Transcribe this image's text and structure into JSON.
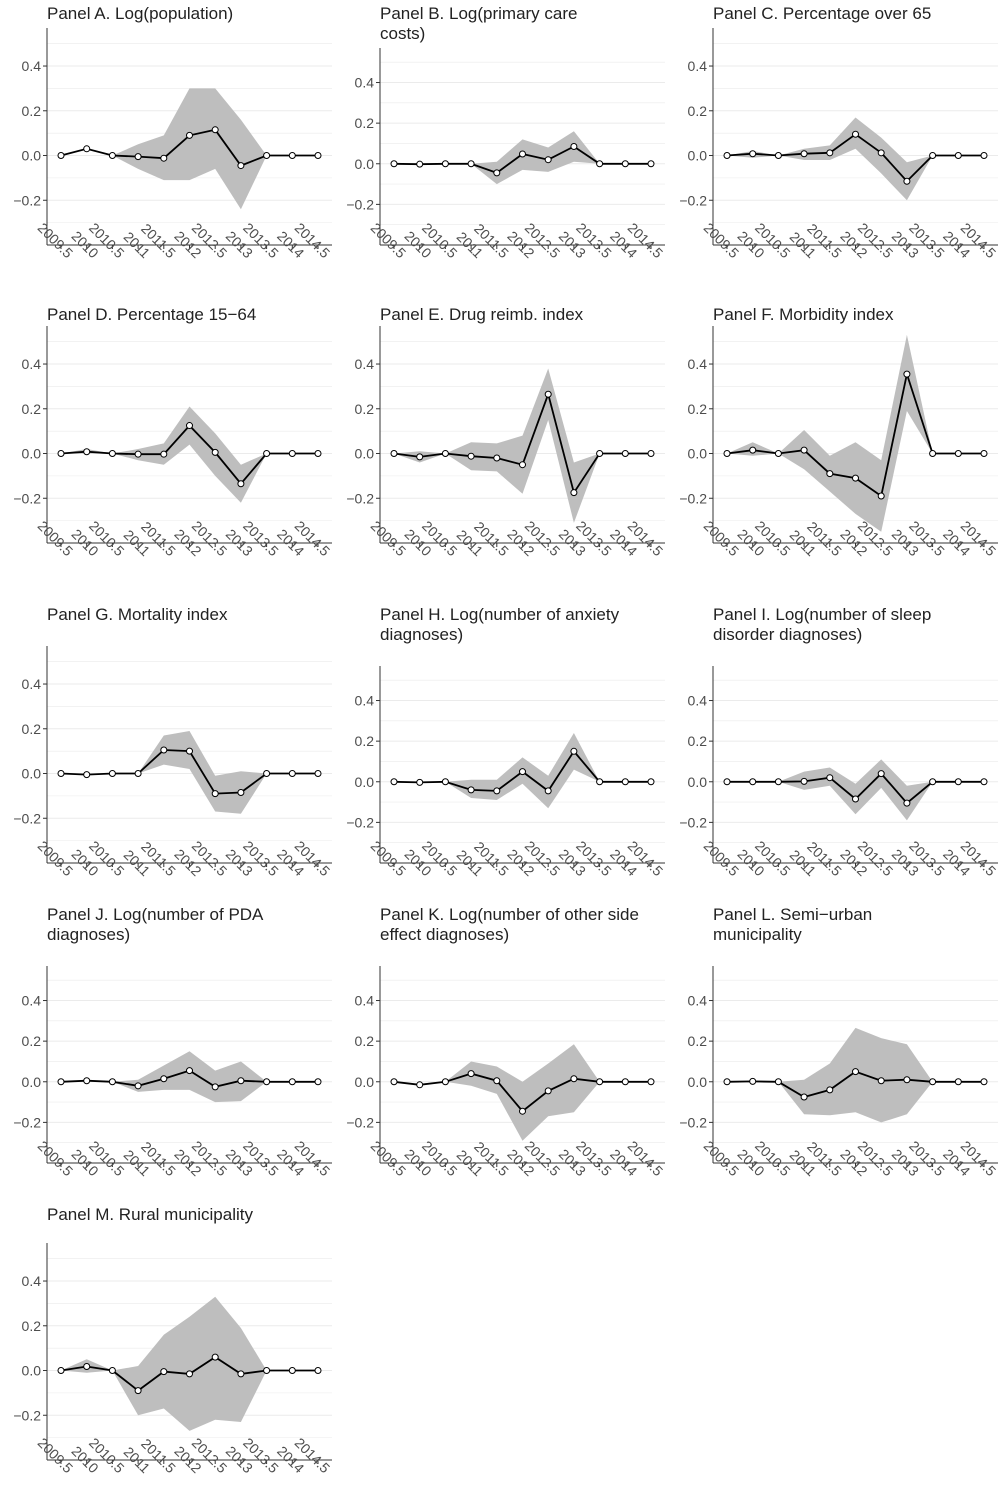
{
  "x_tick_labels": [
    "2009.5",
    "2010",
    "2010.5",
    "2011",
    "2011.5",
    "2012",
    "2012.5",
    "2013",
    "2013.5",
    "2014",
    "2014.5"
  ],
  "y_tick_labels": [
    "0.4",
    "0.2",
    "0.0",
    "−0.2"
  ],
  "colors": {
    "band": "#bebebe",
    "line": "#000000",
    "grid": "#ebebeb",
    "axis": "#333333",
    "text": "#222222",
    "tick_text": "#4d4d4d"
  },
  "chart_data": [
    {
      "type": "line",
      "title": "Panel A. Log(population)",
      "x": [
        2009.5,
        2010,
        2010.5,
        2011,
        2011.5,
        2012,
        2012.5,
        2013,
        2013.5,
        2014,
        2014.5
      ],
      "y": [
        0.0,
        0.03,
        0.0,
        -0.005,
        -0.012,
        0.09,
        0.115,
        -0.045,
        0.0,
        0.0,
        0.0
      ],
      "lower": [
        0.0,
        0.0,
        0.0,
        -0.06,
        -0.11,
        -0.11,
        -0.06,
        -0.24,
        0.0,
        0.0,
        0.0
      ],
      "upper": [
        0.0,
        0.0,
        0.0,
        0.05,
        0.09,
        0.3,
        0.3,
        0.16,
        0.0,
        0.0,
        0.0
      ],
      "ylim": [
        -0.4,
        0.57
      ],
      "grid": true
    },
    {
      "type": "line",
      "title": "Panel B. Log(primary care costs)",
      "x": [
        2009.5,
        2010,
        2010.5,
        2011,
        2011.5,
        2012,
        2012.5,
        2013,
        2013.5,
        2014,
        2014.5
      ],
      "y": [
        0.0,
        -0.002,
        0.0,
        0.0,
        -0.045,
        0.048,
        0.02,
        0.085,
        0.0,
        0.0,
        0.0
      ],
      "lower": [
        0.0,
        0.0,
        0.0,
        0.0,
        -0.1,
        -0.03,
        -0.04,
        0.01,
        0.0,
        0.0,
        0.0
      ],
      "upper": [
        0.0,
        0.0,
        0.0,
        0.0,
        0.01,
        0.12,
        0.08,
        0.16,
        0.0,
        0.0,
        0.0
      ],
      "ylim": [
        -0.4,
        0.57
      ],
      "grid": true
    },
    {
      "type": "line",
      "title": "Panel C. Percentage over 65",
      "x": [
        2009.5,
        2010,
        2010.5,
        2011,
        2011.5,
        2012,
        2012.5,
        2013,
        2013.5,
        2014,
        2014.5
      ],
      "y": [
        0.0,
        0.008,
        0.0,
        0.008,
        0.012,
        0.095,
        0.012,
        -0.115,
        0.0,
        0.0,
        0.0
      ],
      "lower": [
        0.0,
        -0.01,
        0.0,
        -0.02,
        -0.02,
        0.03,
        -0.08,
        -0.2,
        0.0,
        0.0,
        0.0
      ],
      "upper": [
        0.0,
        0.02,
        0.0,
        0.03,
        0.045,
        0.17,
        0.08,
        -0.03,
        0.0,
        0.0,
        0.0
      ],
      "ylim": [
        -0.4,
        0.57
      ],
      "grid": true
    },
    {
      "type": "line",
      "title": "Panel D. Percentage 15−64",
      "x": [
        2009.5,
        2010,
        2010.5,
        2011,
        2011.5,
        2012,
        2012.5,
        2013,
        2013.5,
        2014,
        2014.5
      ],
      "y": [
        0.0,
        0.008,
        0.0,
        -0.003,
        -0.003,
        0.125,
        0.005,
        -0.135,
        0.0,
        0.0,
        0.0
      ],
      "lower": [
        0.0,
        0.0,
        0.0,
        -0.03,
        -0.05,
        0.04,
        -0.1,
        -0.22,
        0.0,
        0.0,
        0.0
      ],
      "upper": [
        0.0,
        0.02,
        0.0,
        0.02,
        0.045,
        0.21,
        0.09,
        -0.05,
        0.0,
        0.0,
        0.0
      ],
      "ylim": [
        -0.4,
        0.57
      ],
      "grid": true
    },
    {
      "type": "line",
      "title": "Panel E. Drug reimb. index",
      "x": [
        2009.5,
        2010,
        2010.5,
        2011,
        2011.5,
        2012,
        2012.5,
        2013,
        2013.5,
        2014,
        2014.5
      ],
      "y": [
        0.0,
        -0.015,
        0.0,
        -0.012,
        -0.02,
        -0.05,
        0.265,
        -0.175,
        0.0,
        0.0,
        0.0
      ],
      "lower": [
        0.0,
        -0.04,
        0.0,
        -0.075,
        -0.08,
        -0.18,
        0.15,
        -0.31,
        0.0,
        0.0,
        0.0
      ],
      "upper": [
        0.0,
        0.01,
        0.0,
        0.05,
        0.045,
        0.08,
        0.38,
        -0.04,
        0.0,
        0.0,
        0.0
      ],
      "ylim": [
        -0.4,
        0.57
      ],
      "grid": true
    },
    {
      "type": "line",
      "title": "Panel F. Morbidity index",
      "x": [
        2009.5,
        2010,
        2010.5,
        2011,
        2011.5,
        2012,
        2012.5,
        2013,
        2013.5,
        2014,
        2014.5
      ],
      "y": [
        0.0,
        0.015,
        0.0,
        0.015,
        -0.09,
        -0.11,
        -0.19,
        0.355,
        0.0,
        0.0,
        0.0
      ],
      "lower": [
        0.0,
        -0.01,
        0.0,
        -0.07,
        -0.17,
        -0.27,
        -0.35,
        0.19,
        0.0,
        0.0,
        0.0
      ],
      "upper": [
        0.0,
        0.05,
        0.0,
        0.105,
        -0.01,
        0.05,
        -0.03,
        0.53,
        0.0,
        0.0,
        0.0
      ],
      "ylim": [
        -0.4,
        0.57
      ],
      "grid": true
    },
    {
      "type": "line",
      "title": "Panel G. Mortality index",
      "x": [
        2009.5,
        2010,
        2010.5,
        2011,
        2011.5,
        2012,
        2012.5,
        2013,
        2013.5,
        2014,
        2014.5
      ],
      "y": [
        0.0,
        -0.005,
        0.0,
        0.0,
        0.105,
        0.1,
        -0.09,
        -0.085,
        0.0,
        0.0,
        0.0
      ],
      "lower": [
        0.0,
        0.0,
        0.0,
        0.0,
        0.04,
        0.02,
        -0.17,
        -0.18,
        0.0,
        0.0,
        0.0
      ],
      "upper": [
        0.0,
        0.0,
        0.0,
        0.0,
        0.17,
        0.19,
        -0.01,
        0.01,
        0.0,
        0.0,
        0.0
      ],
      "ylim": [
        -0.4,
        0.57
      ],
      "grid": true
    },
    {
      "type": "line",
      "title": "Panel H. Log(number of anxiety diagnoses)",
      "x": [
        2009.5,
        2010,
        2010.5,
        2011,
        2011.5,
        2012,
        2012.5,
        2013,
        2013.5,
        2014,
        2014.5
      ],
      "y": [
        0.0,
        -0.003,
        0.0,
        -0.04,
        -0.045,
        0.05,
        -0.045,
        0.15,
        0.0,
        0.0,
        0.0
      ],
      "lower": [
        0.0,
        0.0,
        0.0,
        -0.08,
        -0.09,
        -0.01,
        -0.13,
        0.06,
        0.0,
        0.0,
        0.0
      ],
      "upper": [
        0.0,
        0.0,
        0.0,
        0.01,
        0.01,
        0.12,
        0.03,
        0.24,
        0.0,
        0.0,
        0.0
      ],
      "ylim": [
        -0.4,
        0.57
      ],
      "grid": true
    },
    {
      "type": "line",
      "title": "Panel I. Log(number of sleep disorder diagnoses)",
      "x": [
        2009.5,
        2010,
        2010.5,
        2011,
        2011.5,
        2012,
        2012.5,
        2013,
        2013.5,
        2014,
        2014.5
      ],
      "y": [
        0.0,
        0.0,
        0.0,
        0.002,
        0.02,
        -0.085,
        0.04,
        -0.105,
        0.0,
        0.0,
        0.0
      ],
      "lower": [
        0.0,
        0.0,
        0.0,
        -0.04,
        -0.02,
        -0.16,
        -0.03,
        -0.19,
        0.0,
        0.0,
        0.0
      ],
      "upper": [
        0.0,
        0.0,
        0.0,
        0.05,
        0.07,
        -0.01,
        0.11,
        -0.02,
        0.0,
        0.0,
        0.0
      ],
      "ylim": [
        -0.4,
        0.57
      ],
      "grid": true
    },
    {
      "type": "line",
      "title": "Panel J. Log(number of PDA diagnoses)",
      "x": [
        2009.5,
        2010,
        2010.5,
        2011,
        2011.5,
        2012,
        2012.5,
        2013,
        2013.5,
        2014,
        2014.5
      ],
      "y": [
        0.0,
        0.005,
        0.0,
        -0.02,
        0.015,
        0.055,
        -0.025,
        0.005,
        0.0,
        0.0,
        0.0
      ],
      "lower": [
        0.0,
        0.0,
        0.0,
        -0.05,
        -0.04,
        -0.04,
        -0.1,
        -0.095,
        0.0,
        0.0,
        0.0
      ],
      "upper": [
        0.0,
        0.0,
        0.0,
        0.01,
        0.08,
        0.15,
        0.055,
        0.1,
        0.0,
        0.0,
        0.0
      ],
      "ylim": [
        -0.4,
        0.57
      ],
      "grid": true
    },
    {
      "type": "line",
      "title": "Panel K. Log(number of other side effect diagnoses)",
      "x": [
        2009.5,
        2010,
        2010.5,
        2011,
        2011.5,
        2012,
        2012.5,
        2013,
        2013.5,
        2014,
        2014.5
      ],
      "y": [
        0.0,
        -0.015,
        0.0,
        0.04,
        0.005,
        -0.145,
        -0.045,
        0.015,
        0.0,
        0.0,
        0.0
      ],
      "lower": [
        0.0,
        0.0,
        0.0,
        -0.02,
        -0.06,
        -0.29,
        -0.17,
        -0.15,
        0.0,
        0.0,
        0.0
      ],
      "upper": [
        0.0,
        0.0,
        0.0,
        0.1,
        0.075,
        0.0,
        0.09,
        0.185,
        0.0,
        0.0,
        0.0
      ],
      "ylim": [
        -0.4,
        0.57
      ],
      "grid": true
    },
    {
      "type": "line",
      "title": "Panel L. Semi−urban municipality",
      "x": [
        2009.5,
        2010,
        2010.5,
        2011,
        2011.5,
        2012,
        2012.5,
        2013,
        2013.5,
        2014,
        2014.5
      ],
      "y": [
        0.0,
        0.002,
        0.0,
        -0.075,
        -0.04,
        0.05,
        0.005,
        0.01,
        0.0,
        0.0,
        0.0
      ],
      "lower": [
        0.0,
        0.0,
        0.0,
        -0.16,
        -0.165,
        -0.15,
        -0.2,
        -0.16,
        0.0,
        0.0,
        0.0
      ],
      "upper": [
        0.0,
        0.0,
        0.0,
        0.01,
        0.09,
        0.265,
        0.215,
        0.185,
        0.0,
        0.0,
        0.0
      ],
      "ylim": [
        -0.4,
        0.57
      ],
      "grid": true
    },
    {
      "type": "line",
      "title": "Panel M. Rural municipality",
      "x": [
        2009.5,
        2010,
        2010.5,
        2011,
        2011.5,
        2012,
        2012.5,
        2013,
        2013.5,
        2014,
        2014.5
      ],
      "y": [
        0.0,
        0.018,
        0.0,
        -0.09,
        -0.005,
        -0.015,
        0.06,
        -0.015,
        0.0,
        0.0,
        0.0
      ],
      "lower": [
        0.0,
        -0.01,
        0.0,
        -0.2,
        -0.17,
        -0.27,
        -0.22,
        -0.23,
        0.0,
        0.0,
        0.0
      ],
      "upper": [
        0.0,
        0.05,
        0.0,
        0.02,
        0.16,
        0.24,
        0.33,
        0.19,
        0.0,
        0.0,
        0.0
      ],
      "ylim": [
        -0.4,
        0.57
      ],
      "grid": true
    }
  ]
}
